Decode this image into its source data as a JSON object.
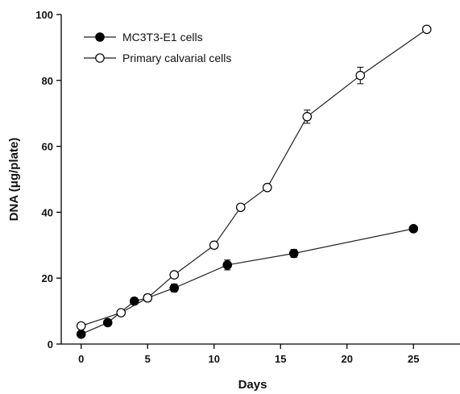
{
  "chart_data": {
    "type": "line",
    "title": "",
    "xlabel": "Days",
    "ylabel": "DNA (μg/plate)",
    "xlim": [
      -1.5,
      28.5
    ],
    "ylim": [
      0,
      100
    ],
    "x_ticks": [
      0,
      5,
      10,
      15,
      20,
      25
    ],
    "y_ticks": [
      0,
      20,
      40,
      60,
      80,
      100
    ],
    "legend_position": "top-left",
    "grid": false,
    "series": [
      {
        "name": "MC3T3-E1 cells",
        "marker": "filled-circle",
        "color": "#000000",
        "x": [
          0,
          2,
          4,
          5,
          7,
          11,
          16,
          25
        ],
        "y": [
          3,
          6.5,
          13,
          14,
          17,
          24,
          27.5,
          35
        ],
        "err": [
          0.5,
          0.8,
          1.0,
          1.0,
          1.2,
          1.5,
          1.2,
          0
        ]
      },
      {
        "name": "Primary calvarial cells",
        "marker": "open-circle",
        "color": "#000000",
        "x": [
          0,
          3,
          5,
          7,
          10,
          12,
          14,
          17,
          21,
          26
        ],
        "y": [
          5.5,
          9.5,
          14,
          21,
          30,
          41.5,
          47.5,
          69,
          81.5,
          95.5
        ],
        "err": [
          0,
          0.5,
          1.0,
          0.5,
          1.0,
          0.5,
          0.5,
          2.0,
          2.5,
          0
        ]
      }
    ]
  }
}
